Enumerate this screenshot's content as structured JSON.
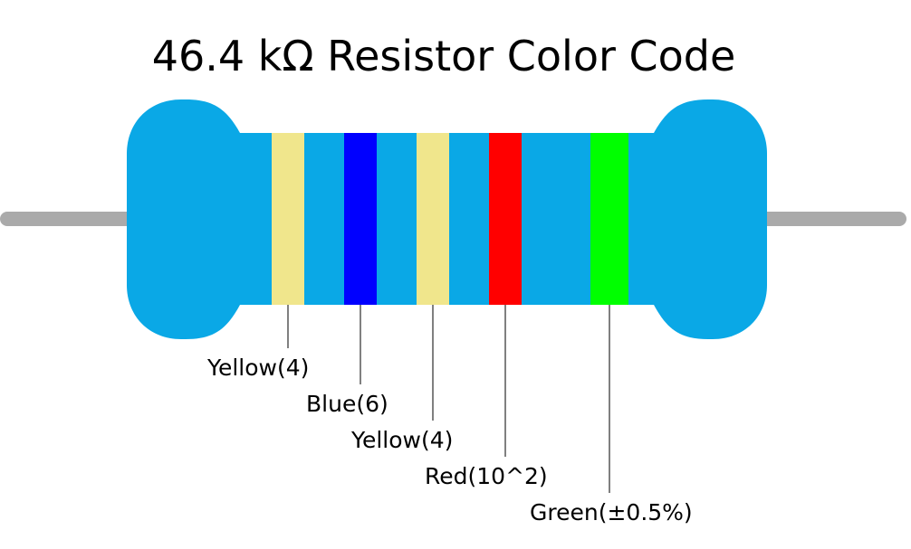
{
  "title": "46.4 kΩ Resistor Color Code",
  "bands": [
    {
      "label": "Yellow(4)",
      "color": "#f0e68c"
    },
    {
      "label": "Blue(6)",
      "color": "#0000ff"
    },
    {
      "label": "Yellow(4)",
      "color": "#f0e68c"
    },
    {
      "label": "Red(10^2)",
      "color": "#ff0000"
    },
    {
      "label": "Green(±0.5%)",
      "color": "#00ff00"
    }
  ]
}
